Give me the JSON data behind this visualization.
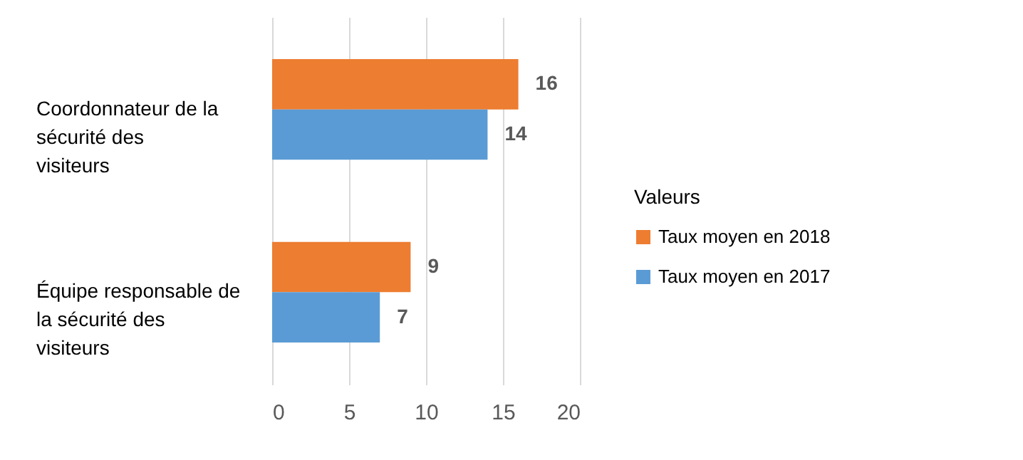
{
  "chart_data": {
    "type": "bar",
    "orientation": "horizontal",
    "categories": [
      "Coordonnateur de la sécurité des visiteurs",
      "Équipe responsable de la sécurité des visiteurs"
    ],
    "series": [
      {
        "name": "Taux moyen en 2018",
        "color": "#ed7d31",
        "values": [
          16,
          9
        ]
      },
      {
        "name": "Taux moyen en 2017",
        "color": "#5b9bd5",
        "values": [
          14,
          7
        ]
      }
    ],
    "xlim": [
      0,
      20
    ],
    "xticks": [
      0,
      5,
      10,
      15,
      20
    ],
    "grid": "x",
    "legend": "right",
    "legend_title": "Valeurs",
    "data_labels": true
  }
}
